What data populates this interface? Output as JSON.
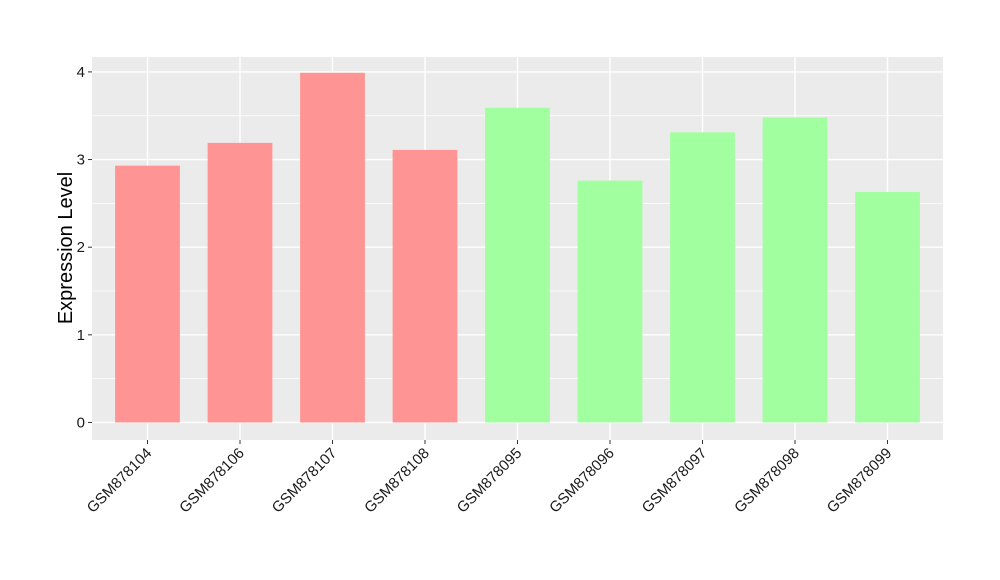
{
  "chart_data": {
    "type": "bar",
    "title": "",
    "xlabel": "",
    "ylabel": "Expression Level",
    "categories": [
      "GSM878104",
      "GSM878106",
      "GSM878107",
      "GSM878108",
      "GSM878095",
      "GSM878096",
      "GSM878097",
      "GSM878098",
      "GSM878099"
    ],
    "values": [
      2.93,
      3.19,
      3.99,
      3.11,
      3.59,
      2.76,
      3.31,
      3.48,
      2.63
    ],
    "bar_colors": [
      "#ff9494",
      "#ff9494",
      "#ff9494",
      "#ff9494",
      "#a1ff9f",
      "#a1ff9f",
      "#a1ff9f",
      "#a1ff9f",
      "#a1ff9f"
    ],
    "ylim": [
      -0.2,
      4.17
    ],
    "yticks": [
      0,
      1,
      2,
      3,
      4
    ],
    "ytick_labels": [
      "0",
      "1",
      "2",
      "3",
      "4"
    ],
    "grid": true,
    "panel_background": "#ebebeb",
    "grid_color": "#ffffff"
  }
}
